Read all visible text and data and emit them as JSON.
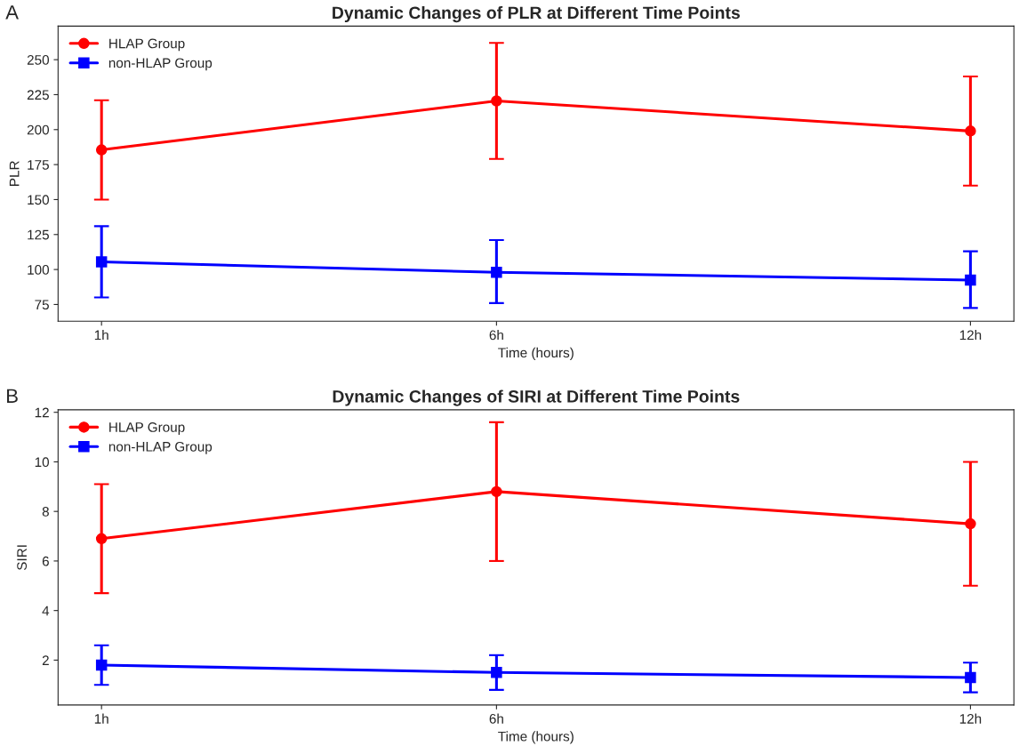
{
  "chart_data": [
    {
      "type": "line",
      "title": "Dynamic Changes of PLR at Different Time Points",
      "xlabel": "Time (hours)",
      "ylabel": "PLR",
      "annotations": [
        "A"
      ],
      "x": [
        1,
        6,
        12
      ],
      "xlim": [
        0.45,
        12.55
      ],
      "xticks": [
        {
          "value": 1,
          "label": "1h"
        },
        {
          "value": 6,
          "label": "6h"
        },
        {
          "value": 12,
          "label": "12h"
        }
      ],
      "ylim": [
        63,
        274
      ],
      "yticks": [
        75,
        100,
        125,
        150,
        175,
        200,
        225,
        250
      ],
      "grid": false,
      "legend": "top left",
      "line_style": "solid",
      "series": [
        {
          "name": "HLAP Group",
          "color": "#ff0000",
          "marker": "circle",
          "values": [
            185.5,
            220.5,
            199
          ],
          "errors": [
            [
              150,
              221
            ],
            [
              179,
              262
            ],
            [
              160,
              238
            ]
          ]
        },
        {
          "name": "non-HLAP Group",
          "color": "#0000ff",
          "marker": "square",
          "values": [
            105.5,
            98,
            92.5
          ],
          "errors": [
            [
              80,
              131
            ],
            [
              76,
              121
            ],
            [
              72.5,
              113
            ]
          ]
        }
      ]
    },
    {
      "type": "line",
      "title": "Dynamic Changes of SIRI at Different Time Points",
      "xlabel": "Time (hours)",
      "ylabel": "SIRI",
      "annotations": [
        "B"
      ],
      "x": [
        1,
        6,
        12
      ],
      "xlim": [
        0.45,
        12.55
      ],
      "xticks": [
        {
          "value": 1,
          "label": "1h"
        },
        {
          "value": 6,
          "label": "6h"
        },
        {
          "value": 12,
          "label": "12h"
        }
      ],
      "ylim": [
        0.19,
        12.1
      ],
      "yticks": [
        2,
        4,
        6,
        8,
        10,
        12
      ],
      "grid": false,
      "legend": "top left",
      "line_style": "solid",
      "series": [
        {
          "name": "HLAP Group",
          "color": "#ff0000",
          "marker": "circle",
          "values": [
            6.9,
            8.8,
            7.5
          ],
          "errors": [
            [
              4.7,
              9.1
            ],
            [
              6.0,
              11.6
            ],
            [
              5.0,
              10.0
            ]
          ]
        },
        {
          "name": "non-HLAP Group",
          "color": "#0000ff",
          "marker": "square",
          "values": [
            1.8,
            1.5,
            1.3
          ],
          "errors": [
            [
              1.0,
              2.6
            ],
            [
              0.8,
              2.2
            ],
            [
              0.7,
              1.9
            ]
          ]
        }
      ]
    }
  ]
}
